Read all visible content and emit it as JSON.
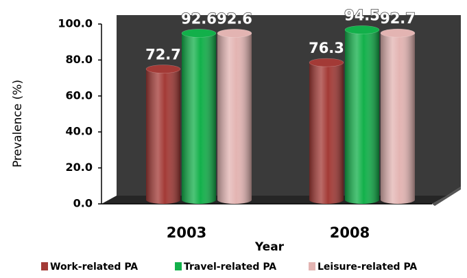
{
  "chart_data": {
    "type": "bar3d",
    "categories": [
      "2003",
      "2008"
    ],
    "series": [
      {
        "name": "Work-related PA",
        "color": "#a33a36",
        "values": [
          72.7,
          76.3
        ]
      },
      {
        "name": "Travel-related PA",
        "color": "#12b04a",
        "values": [
          92.6,
          94.5
        ]
      },
      {
        "name": "Leisure-related PA",
        "color": "#e3b4b2",
        "values": [
          92.6,
          92.7
        ]
      }
    ],
    "ylim": [
      0,
      100
    ],
    "yticks": [
      {
        "value": 0,
        "label": "0.0"
      },
      {
        "value": 20,
        "label": "20.0"
      },
      {
        "value": 40,
        "label": "40.0"
      },
      {
        "value": 60,
        "label": "60.0"
      },
      {
        "value": 80,
        "label": "80.0"
      },
      {
        "value": 100,
        "label": "100.0"
      }
    ],
    "y_label": "Prevalence (%)",
    "x_label": "Year",
    "grid": false,
    "legend": "bottom"
  }
}
